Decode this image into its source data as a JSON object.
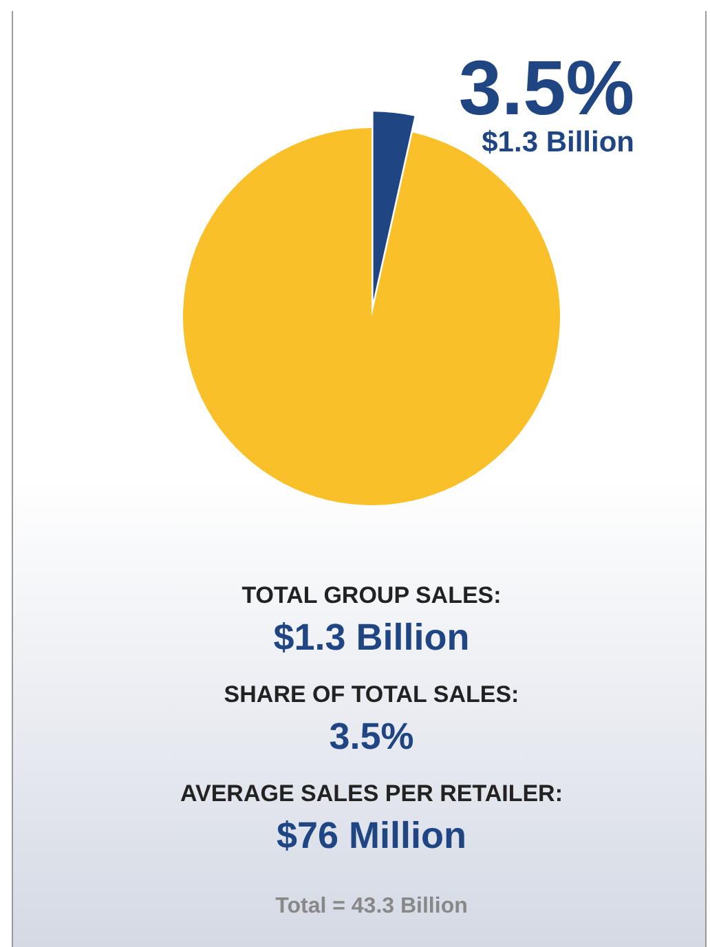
{
  "chart_data": {
    "type": "pie",
    "categories": [
      null,
      null
    ],
    "values": [
      3.5,
      96.5
    ],
    "colors": [
      "#1f4582",
      "#f9c02a"
    ],
    "value_labels": [
      "3.5%",
      null
    ],
    "annotations": [
      "$1.3 Billion",
      "TOTAL GROUP SALES:",
      "$1.3 Billion",
      "SHARE OF TOTAL SALES:",
      "3.5%",
      "AVERAGE SALES PER RETAILER:",
      "$76 Million",
      "Total = 43.3 Billion"
    ]
  }
}
